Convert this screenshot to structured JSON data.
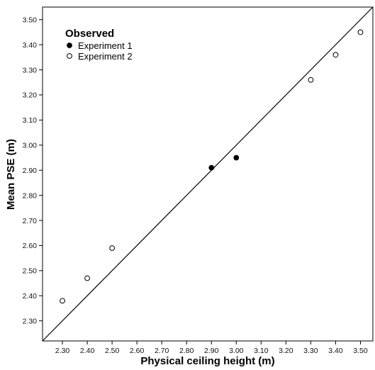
{
  "chart_data": {
    "type": "scatter",
    "xlabel": "Physical ceiling height (m)",
    "ylabel": "Mean PSE (m)",
    "xlim": [
      2.22,
      3.55
    ],
    "ylim": [
      2.22,
      3.55
    ],
    "x_ticks": [
      2.3,
      2.4,
      2.5,
      2.6,
      2.7,
      2.8,
      2.9,
      3.0,
      3.1,
      3.2,
      3.3,
      3.4,
      3.5
    ],
    "x_tick_labels": [
      "2.30",
      "2.40",
      "2.50",
      "2.60",
      "2.70",
      "2.80",
      "2.90",
      "3.00",
      "3.10",
      "3.20",
      "3.30",
      "3.40",
      "3.50"
    ],
    "y_ticks": [
      2.3,
      2.4,
      2.5,
      2.6,
      2.7,
      2.8,
      2.9,
      3.0,
      3.1,
      3.2,
      3.3,
      3.4,
      3.5
    ],
    "y_tick_labels": [
      "2.30",
      "2.40",
      "2.50",
      "2.60",
      "2.70",
      "2.80",
      "2.90",
      "3.00",
      "3.10",
      "3.20",
      "3.30",
      "3.40",
      "3.50"
    ],
    "grid": false,
    "legend_title": "Observed",
    "legend_position": "top-left",
    "reference_line": {
      "from": [
        2.22,
        2.22
      ],
      "to": [
        3.55,
        3.55
      ]
    },
    "series": [
      {
        "name": "Experiment 1",
        "marker": "filled-circle",
        "x": [
          2.9,
          3.0
        ],
        "y": [
          2.91,
          2.95
        ]
      },
      {
        "name": "Experiment 2",
        "marker": "open-circle",
        "x": [
          2.3,
          2.4,
          2.5,
          3.3,
          3.4,
          3.5
        ],
        "y": [
          2.38,
          2.47,
          2.59,
          3.26,
          3.36,
          3.45
        ]
      }
    ]
  }
}
